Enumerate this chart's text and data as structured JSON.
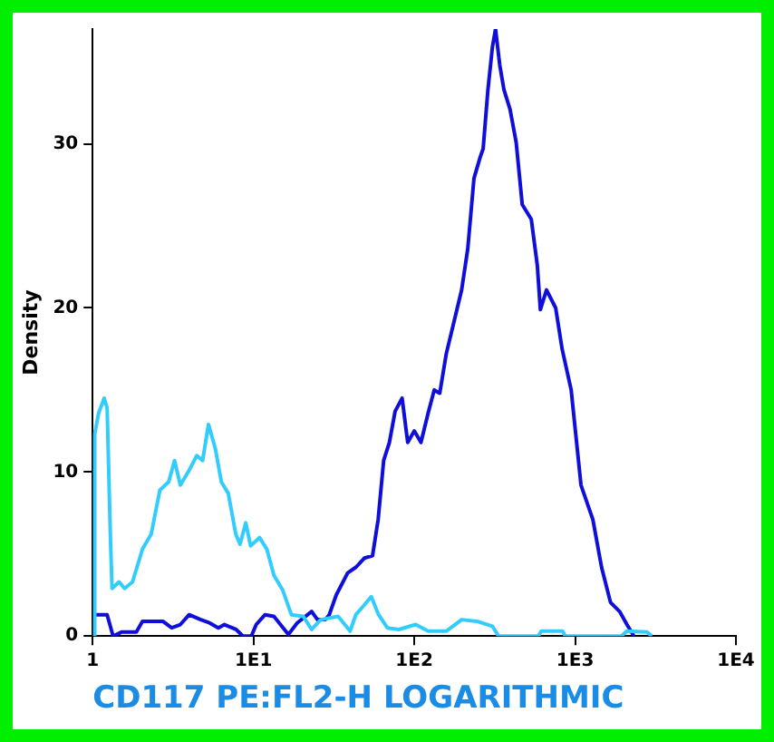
{
  "chart_data": {
    "type": "line",
    "xlabel": "CD117 PE:FL2-H LOGARITHMIC",
    "ylabel": "Density",
    "log": "x",
    "xlim": [
      1,
      10000
    ],
    "ylim": [
      0,
      37
    ],
    "xticks": [
      {
        "value": 1,
        "label": "1"
      },
      {
        "value": 10,
        "label": "1E1"
      },
      {
        "value": 100,
        "label": "1E2"
      },
      {
        "value": 1000,
        "label": "1E3"
      },
      {
        "value": 10000,
        "label": "1E4"
      }
    ],
    "yticks": [
      0,
      10,
      20,
      30
    ],
    "grid": false,
    "legend": false,
    "marker": "none",
    "line_style": "solid",
    "series": [
      {
        "color": "#33ccff",
        "x": [
          1.03,
          1.03,
          1.09,
          1.18,
          1.23,
          1.29,
          1.32,
          1.46,
          1.58,
          1.77,
          2.04,
          2.31,
          2.62,
          2.97,
          3.23,
          3.51,
          3.98,
          4.44,
          4.83,
          5.25,
          5.8,
          6.31,
          6.97,
          7.77,
          8.25,
          8.95,
          9.6,
          10.9,
          12.1,
          13.4,
          15.2,
          17.2,
          20.4,
          23,
          26.2,
          33.6,
          39.9,
          43.3,
          47,
          54,
          60,
          68,
          80,
          102,
          122,
          158,
          197,
          245,
          306,
          334,
          590,
          616,
          835,
          870,
          1940,
          2100,
          2800,
          3000
        ],
        "values": [
          0,
          12.3,
          13.6,
          14.5,
          13.9,
          6,
          2.9,
          3.3,
          2.9,
          3.3,
          5.3,
          6.2,
          8.9,
          9.4,
          10.7,
          9.2,
          10.1,
          11,
          10.7,
          12.9,
          11.4,
          9.4,
          8.7,
          6.2,
          5.6,
          6.9,
          5.5,
          6,
          5.3,
          3.7,
          2.8,
          1.3,
          1.2,
          0.4,
          1,
          1.2,
          0.3,
          1.3,
          1.7,
          2.4,
          1.3,
          0.5,
          0.4,
          0.7,
          0.3,
          0.3,
          1,
          0.9,
          0.6,
          0,
          0,
          0.3,
          0.3,
          0,
          0,
          0.3,
          0.25,
          0
        ]
      },
      {
        "color": "#0f0fd9",
        "x": [
          1.03,
          1.23,
          1.34,
          1.52,
          1.87,
          2.04,
          2.73,
          3.1,
          3.51,
          3.98,
          4.7,
          5.33,
          6.05,
          6.6,
          7.8,
          8.6,
          9.7,
          10.4,
          11.8,
          13.4,
          16.5,
          18.7,
          23,
          25,
          28,
          29.6,
          32.7,
          38.5,
          43.4,
          48.9,
          55,
          59.6,
          64.5,
          70,
          76,
          84,
          91,
          100,
          110,
          122,
          133,
          144,
          158,
          180,
          197,
          215,
          235,
          257,
          268,
          287,
          306,
          320,
          340,
          361,
          394,
          430,
          469,
          534,
          582,
          608,
          664,
          757,
          830,
          945,
          1088,
          1290,
          1460,
          1660,
          1890,
          2100,
          2320
        ],
        "values": [
          1.3,
          1.3,
          0,
          0.25,
          0.25,
          0.9,
          0.9,
          0.5,
          0.7,
          1.3,
          1,
          0.8,
          0.5,
          0.7,
          0.4,
          0,
          0,
          0.7,
          1.3,
          1.2,
          0.1,
          0.8,
          1.5,
          1,
          1,
          1.3,
          2.5,
          3.85,
          4.2,
          4.75,
          4.9,
          7.1,
          10.7,
          11.8,
          13.7,
          14.5,
          11.8,
          12.5,
          11.8,
          13.6,
          15,
          14.8,
          17.2,
          19.5,
          21.1,
          23.6,
          27.9,
          29.2,
          29.7,
          33.3,
          35.9,
          37,
          34.8,
          33.3,
          32.1,
          30.1,
          26.3,
          25.4,
          22.6,
          19.9,
          21.1,
          20,
          17.5,
          15,
          9.2,
          7.1,
          4.2,
          2.05,
          1.5,
          0.7,
          0
        ]
      }
    ]
  }
}
